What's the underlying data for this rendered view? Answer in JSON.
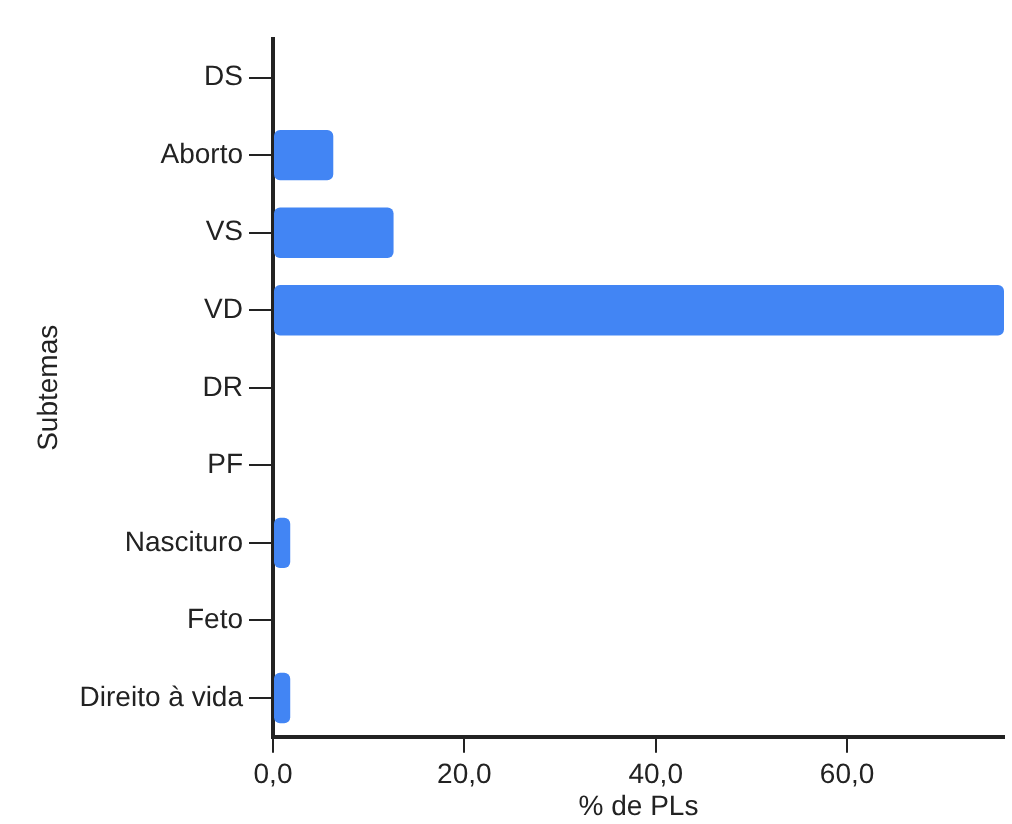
{
  "chart_data": {
    "type": "bar",
    "orientation": "horizontal",
    "xlabel": "% de PLs",
    "ylabel": "Subtemas",
    "categories": [
      "DS",
      "Aborto",
      "VS",
      "VD",
      "DR",
      "PF",
      "Nascituro",
      "Feto",
      "Direito à vida"
    ],
    "values": [
      0,
      6.3,
      12.6,
      76.4,
      0,
      0,
      1.8,
      0,
      1.8
    ],
    "color": "#4285f4",
    "xlim": [
      0,
      76.4
    ],
    "xticks": [
      {
        "value": 0,
        "label": "0,0"
      },
      {
        "value": 20,
        "label": "20,0"
      },
      {
        "value": 40,
        "label": "40,0"
      },
      {
        "value": 60,
        "label": "60,0"
      }
    ],
    "grid": false,
    "legend": false
  }
}
